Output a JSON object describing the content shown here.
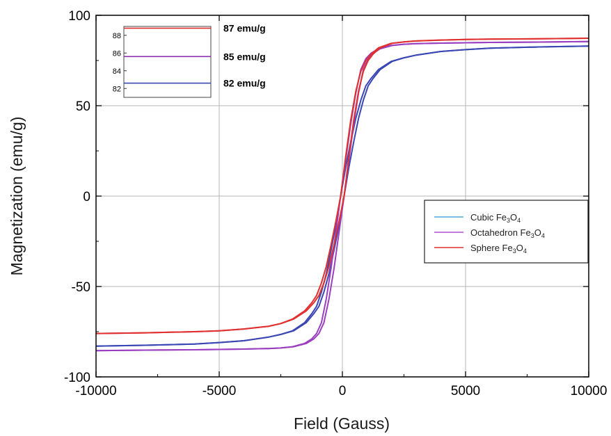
{
  "chart_data": {
    "type": "line",
    "xlabel": "Field (Gauss)",
    "ylabel": "Magnetization (emu/g)",
    "xlim": [
      -10000,
      10000
    ],
    "ylim": [
      -100,
      100
    ],
    "x_ticks": [
      -10000,
      -5000,
      0,
      5000,
      10000
    ],
    "y_ticks": [
      -100,
      -50,
      0,
      50,
      100
    ],
    "x_tick_labels": [
      "-10000",
      "-5000",
      "0",
      "5000",
      "10000"
    ],
    "y_tick_labels": [
      "-100",
      "-50",
      "0",
      "50",
      "100"
    ],
    "grid": true,
    "legend_position": "right",
    "series": [
      {
        "name": "Cubic Fe3O4",
        "legend_main": "Cubic Fe",
        "color": "#4ea8d6",
        "draw_color": "#3a46b4",
        "x": [
          -10000,
          -8000,
          -6000,
          -5000,
          -4000,
          -3000,
          -2500,
          -2000,
          -1500,
          -1200,
          -1000,
          -800,
          -600,
          -400,
          -200,
          0,
          200,
          400,
          600,
          800,
          1000,
          1200,
          1500,
          2000,
          2500,
          3000,
          4000,
          5000,
          6000,
          8000,
          10000
        ],
        "y": [
          -83,
          -82.5,
          -81.8,
          -81,
          -80,
          -78,
          -76.5,
          -74.5,
          -70,
          -65,
          -61,
          -53,
          -43,
          -30,
          -16,
          0,
          16,
          30,
          43,
          53,
          61,
          65,
          70,
          74.5,
          76.5,
          78,
          80,
          81,
          81.8,
          82.5,
          83
        ]
      },
      {
        "name": "Octahedron Fe3O4",
        "legend_main": "Octahedron Fe",
        "color": "#b050d0",
        "draw_color": "#9a3fc0",
        "x": [
          -10000,
          -8000,
          -6000,
          -5000,
          -4000,
          -3000,
          -2500,
          -2000,
          -1500,
          -1200,
          -1000,
          -800,
          -600,
          -400,
          -200,
          0,
          200,
          400,
          600,
          800,
          1000,
          1200,
          1500,
          2000,
          2500,
          3000,
          4000,
          5000,
          6000,
          8000,
          10000
        ],
        "y": [
          -85.5,
          -85.2,
          -85,
          -84.8,
          -84.6,
          -84.3,
          -84,
          -83.3,
          -81.5,
          -79,
          -76,
          -70,
          -57,
          -40,
          -20,
          0,
          20,
          40,
          57,
          70,
          76,
          79,
          81.5,
          83.3,
          84,
          84.3,
          84.6,
          84.8,
          85,
          85.2,
          85.5
        ]
      },
      {
        "name": "Sphere Fe3O4",
        "legend_main": "Sphere Fe",
        "color": "#e03030",
        "draw_color": "#e03030",
        "x": [
          -10000,
          -8000,
          -6000,
          -5000,
          -4000,
          -3000,
          -2500,
          -2000,
          -1500,
          -1200,
          -1000,
          -800,
          -600,
          -400,
          -200,
          0,
          200,
          400,
          600,
          800,
          1000,
          1200,
          1500,
          2000,
          2500,
          3000,
          4000,
          5000,
          6000,
          8000,
          10000
        ],
        "y": [
          -76,
          -75.6,
          -75,
          -74.5,
          -73.5,
          -72,
          -70.5,
          -68,
          -63.5,
          -59,
          -55,
          -48,
          -39,
          -27,
          -14,
          0,
          22,
          42,
          58,
          69,
          75,
          78.5,
          82,
          84.5,
          85.3,
          85.8,
          86.3,
          86.6,
          86.8,
          87,
          87.3
        ]
      }
    ],
    "inset": {
      "ylim": [
        81,
        89
      ],
      "y_ticks": [
        82,
        84,
        86,
        88
      ],
      "y_tick_labels": [
        "82",
        "84",
        "86",
        "88"
      ],
      "lines": [
        {
          "value": 88.8,
          "color": "#e03030",
          "label": "87 emu/g"
        },
        {
          "value": 85.6,
          "color": "#8a2fb0",
          "label": "85 emu/g"
        },
        {
          "value": 82.6,
          "color": "#3a46b4",
          "label": "82 emu/g"
        }
      ]
    }
  }
}
